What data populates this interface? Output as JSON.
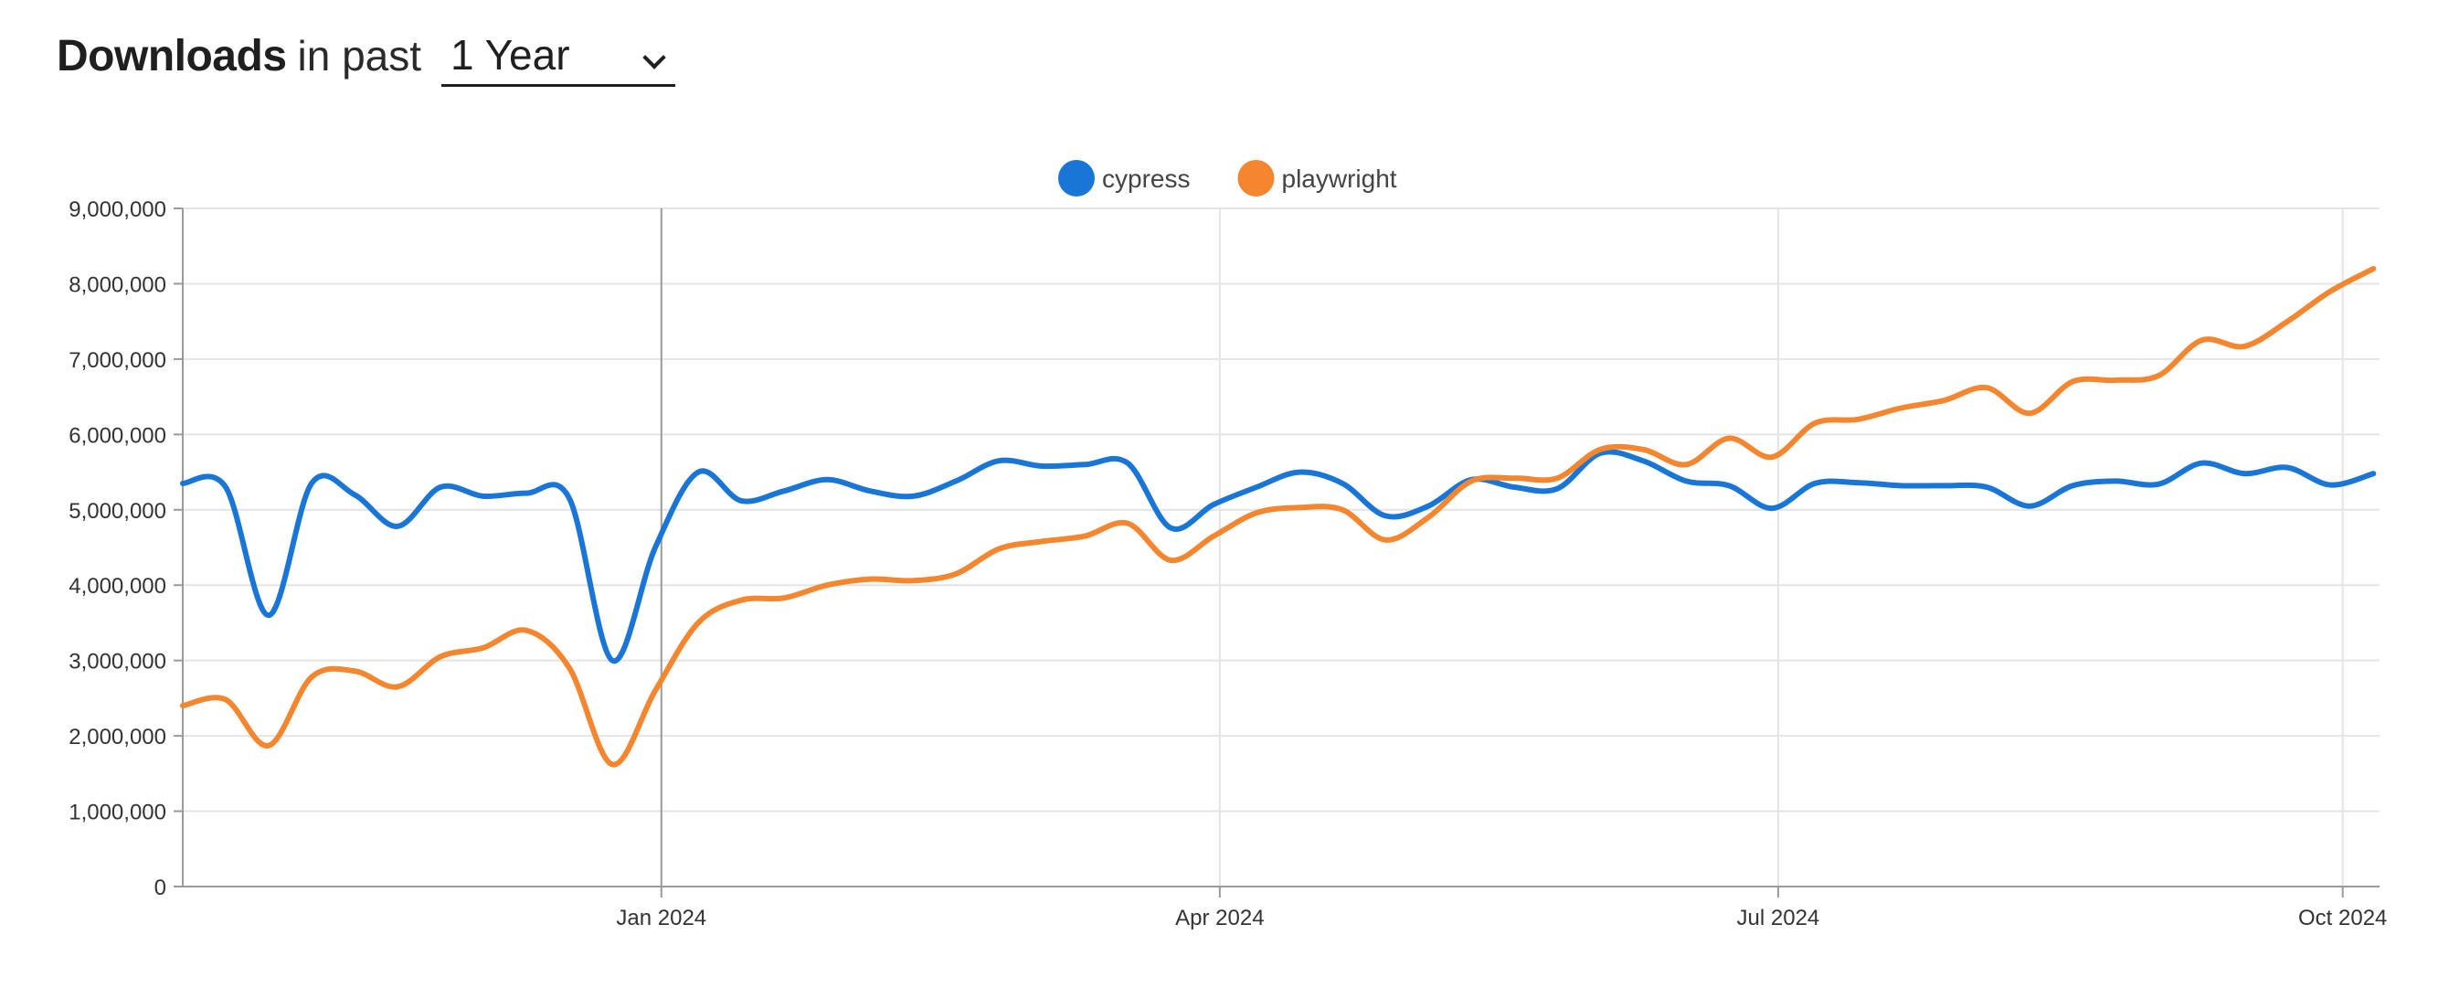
{
  "header": {
    "title_strong": "Downloads",
    "title_rest": "in past",
    "period_selected": "1 Year"
  },
  "icons": {
    "dropdown": "chevron-down-icon"
  },
  "chart_data": {
    "type": "line",
    "x_tick_labels": [
      "Jan 2024",
      "Apr 2024",
      "Jul 2024",
      "Oct 2024"
    ],
    "x_tick_dates": [
      "2024-01-01",
      "2024-04-01",
      "2024-07-01",
      "2024-10-01"
    ],
    "xlim": [
      "2023-10-15",
      "2024-10-07"
    ],
    "ylim": [
      0,
      9000000
    ],
    "y_ticks": [
      0,
      1000000,
      2000000,
      3000000,
      4000000,
      5000000,
      6000000,
      7000000,
      8000000,
      9000000
    ],
    "y_tick_labels": [
      "0",
      "1,000,000",
      "2,000,000",
      "3,000,000",
      "4,000,000",
      "5,000,000",
      "6,000,000",
      "7,000,000",
      "8,000,000",
      "9,000,000"
    ],
    "grid": true,
    "legend_position": "top-center",
    "colors": {
      "cypress": "#1976d6",
      "playwright": "#f4862f"
    },
    "x": [
      "2023-10-15",
      "2023-10-22",
      "2023-10-29",
      "2023-11-05",
      "2023-11-12",
      "2023-11-19",
      "2023-11-26",
      "2023-12-03",
      "2023-12-10",
      "2023-12-17",
      "2023-12-24",
      "2023-12-31",
      "2024-01-07",
      "2024-01-14",
      "2024-01-21",
      "2024-01-28",
      "2024-02-04",
      "2024-02-11",
      "2024-02-18",
      "2024-02-25",
      "2024-03-03",
      "2024-03-10",
      "2024-03-17",
      "2024-03-24",
      "2024-03-31",
      "2024-04-07",
      "2024-04-14",
      "2024-04-21",
      "2024-04-28",
      "2024-05-05",
      "2024-05-12",
      "2024-05-19",
      "2024-05-26",
      "2024-06-02",
      "2024-06-09",
      "2024-06-16",
      "2024-06-23",
      "2024-06-30",
      "2024-07-07",
      "2024-07-14",
      "2024-07-21",
      "2024-07-28",
      "2024-08-04",
      "2024-08-11",
      "2024-08-18",
      "2024-08-25",
      "2024-09-01",
      "2024-09-08",
      "2024-09-15",
      "2024-09-22",
      "2024-09-29",
      "2024-10-06"
    ],
    "series": [
      {
        "name": "cypress",
        "values": [
          5350000,
          5300000,
          3600000,
          5350000,
          5200000,
          4780000,
          5300000,
          5180000,
          5220000,
          5150000,
          3000000,
          4500000,
          5500000,
          5120000,
          5250000,
          5400000,
          5250000,
          5180000,
          5380000,
          5650000,
          5580000,
          5600000,
          5620000,
          4760000,
          5070000,
          5300000,
          5500000,
          5350000,
          4920000,
          5050000,
          5400000,
          5300000,
          5280000,
          5750000,
          5650000,
          5380000,
          5320000,
          5020000,
          5350000,
          5360000,
          5320000,
          5320000,
          5300000,
          5050000,
          5320000,
          5380000,
          5340000,
          5620000,
          5480000,
          5560000,
          5330000,
          5480000
        ]
      },
      {
        "name": "playwright",
        "values": [
          2400000,
          2480000,
          1870000,
          2780000,
          2860000,
          2650000,
          3050000,
          3170000,
          3400000,
          2900000,
          1620000,
          2600000,
          3500000,
          3800000,
          3830000,
          4000000,
          4080000,
          4060000,
          4150000,
          4480000,
          4580000,
          4650000,
          4820000,
          4330000,
          4650000,
          4960000,
          5030000,
          5000000,
          4600000,
          4900000,
          5380000,
          5420000,
          5420000,
          5800000,
          5800000,
          5600000,
          5950000,
          5700000,
          6150000,
          6200000,
          6350000,
          6450000,
          6620000,
          6280000,
          6700000,
          6720000,
          6780000,
          7250000,
          7170000,
          7500000,
          7900000,
          8200000
        ]
      }
    ]
  }
}
